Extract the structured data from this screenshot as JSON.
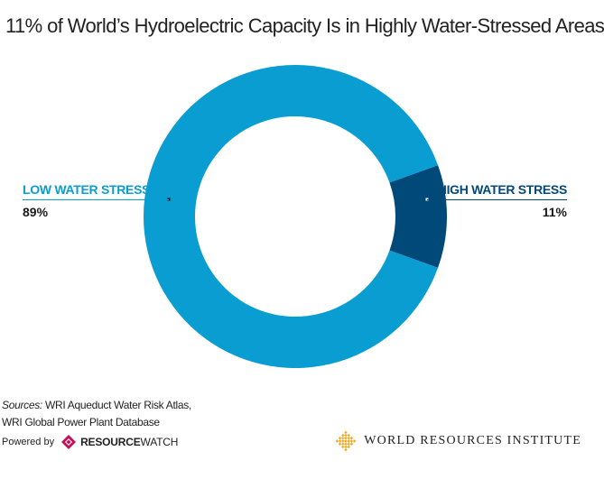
{
  "chart_data": {
    "type": "pie",
    "donut": true,
    "title": "11% of World’s Hydroelectric Capacity Is in Highly Water-Stressed Areas",
    "slices": [
      {
        "label": "LOW WATER STRESS",
        "value": 89,
        "value_label": "89%",
        "color": "#0a9dd1"
      },
      {
        "label": "HIGH WATER STRESS",
        "value": 11,
        "value_label": "11%",
        "color": "#004979"
      }
    ],
    "legend": "none"
  },
  "footer": {
    "sources_label": "Sources:",
    "sources_line1": " WRI Aqueduct Water Risk Atlas,",
    "sources_line2": "WRI Global Power Plant Database",
    "powered_by": "Powered by",
    "rw_brand_bold": "RESOURCE",
    "rw_brand_rest": "WATCH",
    "wri_name": "WORLD RESOURCES INSTITUTE"
  },
  "colors": {
    "low_label": "#0a9dd1",
    "high_label": "#004979",
    "rw_logo": "#c3105a",
    "wri_logo": "#f2a81d"
  }
}
